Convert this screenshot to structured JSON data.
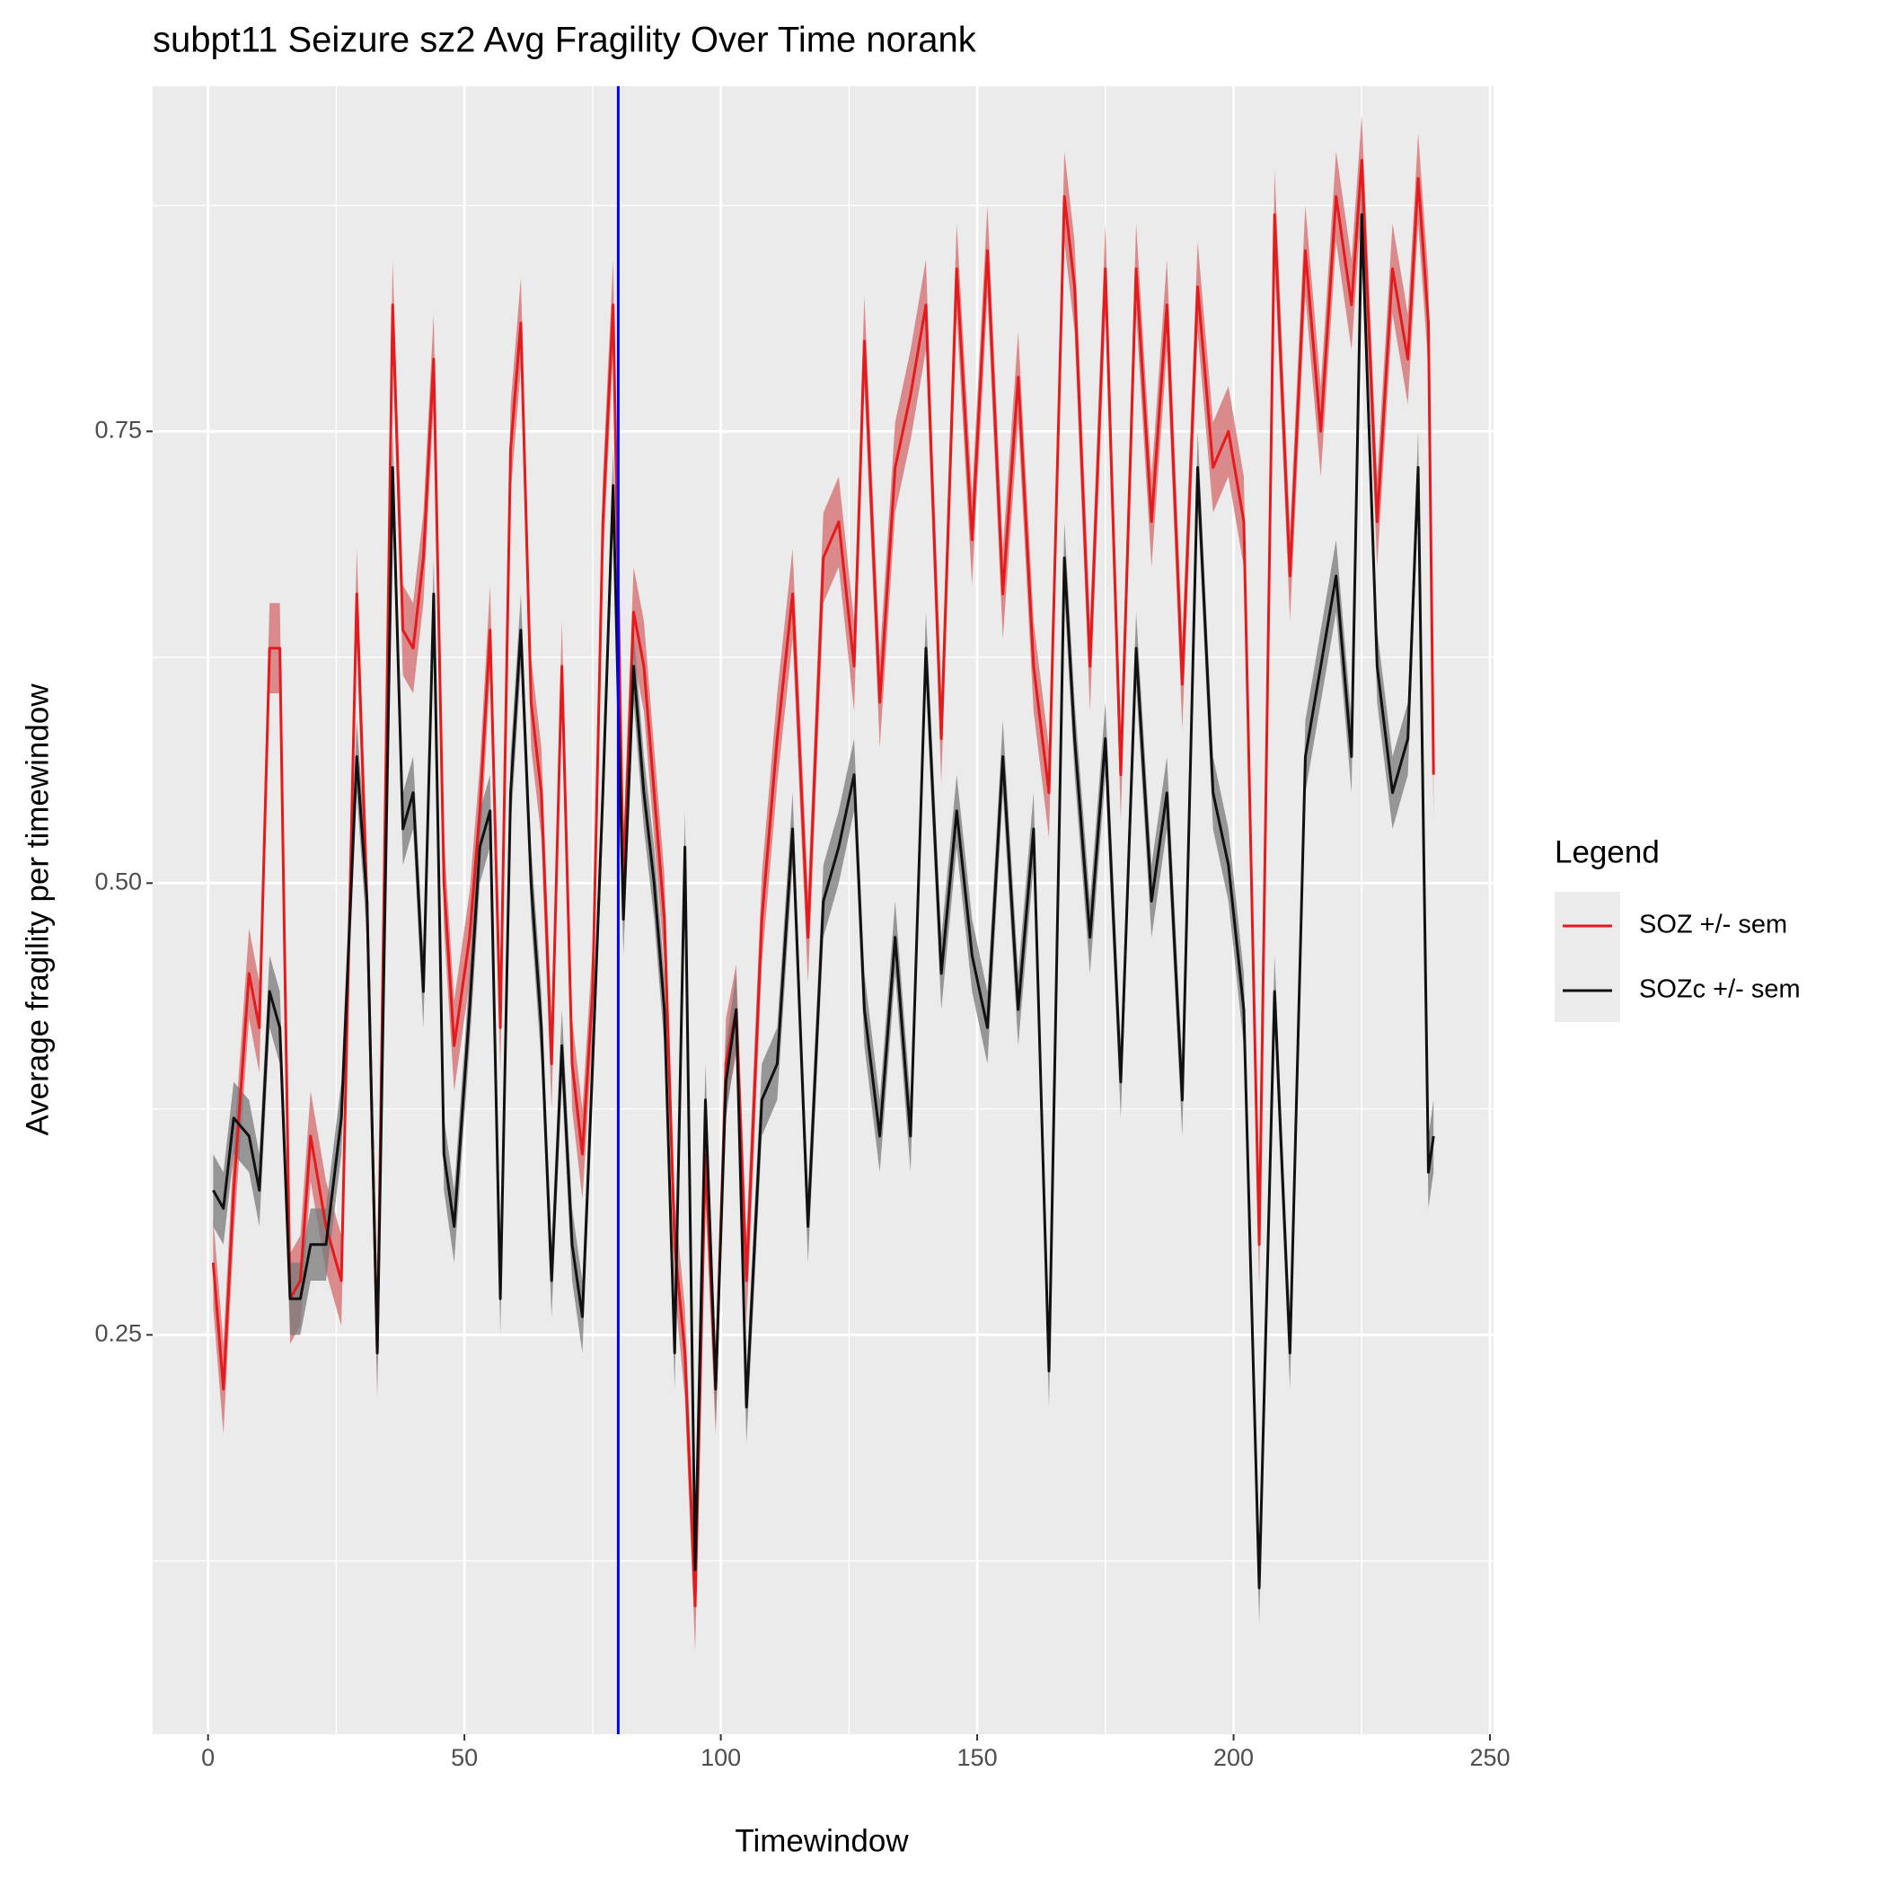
{
  "chart_data": {
    "type": "line",
    "title": "subpt11 Seizure sz2 Avg Fragility Over Time norank",
    "x_label": "Timewindow",
    "y_label": "Average fragility per timewindow",
    "legend_title": "Legend",
    "legend_position": "right",
    "grid": true,
    "vline": 80,
    "vline_color": "#0000ff",
    "xlim": [
      -10.8,
      250.7
    ],
    "ylim": [
      0.029,
      0.941
    ],
    "xticks": [
      0,
      50,
      100,
      150,
      200,
      250
    ],
    "yticks": [
      0.25,
      {
        "value": 0.5,
        "label": "0.50"
      },
      0.75
    ],
    "xminor": [
      25,
      75,
      125,
      175,
      225
    ],
    "yminor": [
      0.125,
      0.375,
      0.625,
      0.875
    ],
    "x": [
      1,
      3,
      5,
      8,
      10,
      12,
      14,
      16,
      18,
      20,
      23,
      26,
      29,
      31,
      33,
      36,
      38,
      40,
      42,
      44,
      46,
      48,
      51,
      53,
      55,
      57,
      59,
      61,
      63,
      65,
      67,
      69,
      71,
      73,
      75,
      77,
      79,
      81,
      83,
      85,
      87,
      89,
      91,
      93,
      95,
      97,
      99,
      101,
      103,
      105,
      108,
      111,
      114,
      117,
      120,
      123,
      126,
      128,
      131,
      134,
      137,
      140,
      143,
      146,
      149,
      152,
      155,
      158,
      161,
      164,
      167,
      169,
      172,
      175,
      178,
      181,
      184,
      187,
      190,
      193,
      196,
      199,
      202,
      205,
      208,
      211,
      214,
      217,
      220,
      223,
      225,
      228,
      231,
      234,
      236,
      238,
      239
    ],
    "series": [
      {
        "name": "SOZ +/- sem",
        "color": "#e41a1c",
        "ribbon": "#d46a6a",
        "sem": 0.025,
        "values": [
          0.29,
          0.22,
          0.33,
          0.45,
          0.42,
          0.63,
          0.63,
          0.27,
          0.28,
          0.36,
          0.31,
          0.28,
          0.66,
          0.49,
          0.24,
          0.82,
          0.64,
          0.63,
          0.68,
          0.79,
          0.5,
          0.41,
          0.47,
          0.54,
          0.64,
          0.42,
          0.74,
          0.81,
          0.6,
          0.55,
          0.4,
          0.62,
          0.4,
          0.35,
          0.44,
          0.7,
          0.82,
          0.5,
          0.65,
          0.62,
          0.55,
          0.48,
          0.3,
          0.24,
          0.1,
          0.35,
          0.22,
          0.4,
          0.43,
          0.28,
          0.48,
          0.58,
          0.66,
          0.47,
          0.68,
          0.7,
          0.62,
          0.8,
          0.6,
          0.73,
          0.77,
          0.82,
          0.58,
          0.84,
          0.69,
          0.85,
          0.66,
          0.78,
          0.62,
          0.55,
          0.88,
          0.83,
          0.62,
          0.84,
          0.56,
          0.84,
          0.7,
          0.82,
          0.61,
          0.83,
          0.73,
          0.75,
          0.7,
          0.3,
          0.87,
          0.67,
          0.85,
          0.75,
          0.88,
          0.82,
          0.9,
          0.7,
          0.84,
          0.79,
          0.89,
          0.81,
          0.56
        ]
      },
      {
        "name": "SOZc +/- sem",
        "color": "#111111",
        "ribbon": "#7a7a7a",
        "sem": 0.02,
        "values": [
          0.33,
          0.32,
          0.37,
          0.36,
          0.33,
          0.44,
          0.42,
          0.27,
          0.27,
          0.3,
          0.3,
          0.37,
          0.57,
          0.49,
          0.24,
          0.73,
          0.53,
          0.55,
          0.44,
          0.66,
          0.35,
          0.31,
          0.43,
          0.52,
          0.54,
          0.27,
          0.55,
          0.64,
          0.5,
          0.42,
          0.28,
          0.41,
          0.3,
          0.26,
          0.4,
          0.55,
          0.72,
          0.48,
          0.62,
          0.55,
          0.5,
          0.43,
          0.24,
          0.52,
          0.12,
          0.38,
          0.22,
          0.39,
          0.43,
          0.21,
          0.38,
          0.4,
          0.53,
          0.31,
          0.49,
          0.52,
          0.56,
          0.43,
          0.36,
          0.47,
          0.36,
          0.63,
          0.45,
          0.54,
          0.46,
          0.42,
          0.57,
          0.43,
          0.53,
          0.23,
          0.68,
          0.58,
          0.47,
          0.58,
          0.39,
          0.63,
          0.49,
          0.55,
          0.38,
          0.73,
          0.55,
          0.51,
          0.43,
          0.11,
          0.44,
          0.24,
          0.57,
          0.62,
          0.67,
          0.57,
          0.87,
          0.62,
          0.55,
          0.58,
          0.73,
          0.34,
          0.36
        ]
      }
    ]
  }
}
